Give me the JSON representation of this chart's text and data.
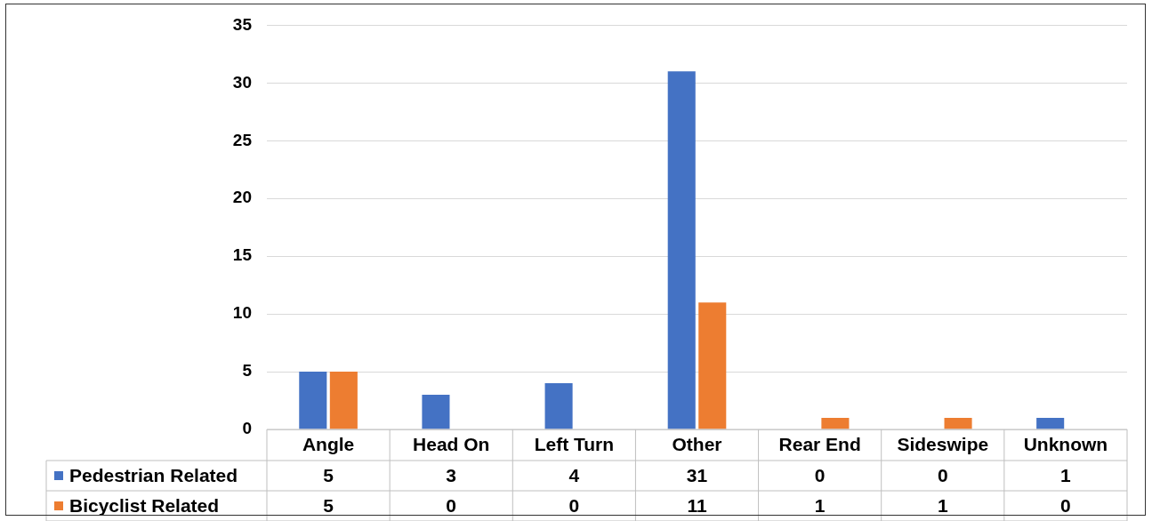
{
  "chart_data": {
    "type": "bar",
    "categories": [
      "Angle",
      "Head On",
      "Left Turn",
      "Other",
      "Rear End",
      "Sideswipe",
      "Unknown"
    ],
    "series": [
      {
        "name": "Pedestrian Related",
        "color": "#4472c4",
        "values": [
          5,
          3,
          4,
          31,
          0,
          0,
          1
        ]
      },
      {
        "name": "Bicyclist Related",
        "color": "#ed7d31",
        "values": [
          5,
          0,
          0,
          11,
          1,
          1,
          0
        ]
      }
    ],
    "ylim": [
      0,
      35
    ],
    "yticks": [
      0,
      5,
      10,
      15,
      20,
      25,
      30,
      35
    ],
    "grid": "y",
    "legend": "bottom",
    "data_labels": true
  }
}
